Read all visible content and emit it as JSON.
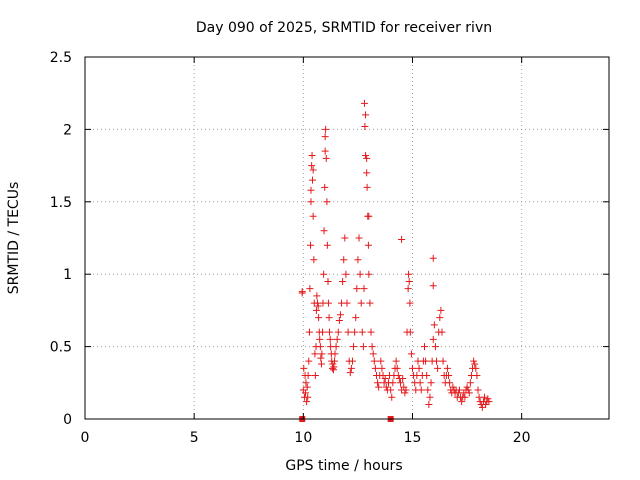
{
  "chart_data": {
    "type": "scatter",
    "title": "Day 090 of 2025, SRMTID for receiver rivn",
    "xlabel": "GPS time / hours",
    "ylabel": "SRMTID / TECUs",
    "xlim": [
      0,
      24
    ],
    "ylim": [
      0,
      2.5
    ],
    "xticks": [
      0,
      5,
      10,
      15,
      20
    ],
    "xtick_labels": [
      "0",
      "5",
      "10",
      "15",
      "20"
    ],
    "yticks": [
      0,
      0.5,
      1,
      1.5,
      2,
      2.5
    ],
    "ytick_labels": [
      "0",
      "0.5",
      "1",
      "1.5",
      "2",
      "2.5"
    ],
    "grid": true,
    "marker": "plus",
    "color": "#e41a1c",
    "series": [
      {
        "name": "SRMTID",
        "points": [
          [
            9.95,
            0.87
          ],
          [
            10.0,
            0.2
          ],
          [
            10.02,
            0.35
          ],
          [
            10.05,
            0.15
          ],
          [
            10.08,
            0.3
          ],
          [
            10.1,
            0.18
          ],
          [
            10.12,
            0.25
          ],
          [
            10.15,
            0.12
          ],
          [
            10.18,
            0.22
          ],
          [
            10.2,
            0.15
          ],
          [
            10.22,
            0.3
          ],
          [
            10.25,
            0.4
          ],
          [
            10.28,
            0.6
          ],
          [
            10.3,
            0.9
          ],
          [
            10.33,
            1.2
          ],
          [
            10.35,
            1.5
          ],
          [
            10.38,
            1.75
          ],
          [
            10.4,
            1.82
          ],
          [
            10.42,
            1.65
          ],
          [
            10.45,
            1.4
          ],
          [
            10.48,
            1.1
          ],
          [
            10.5,
            0.8
          ],
          [
            10.53,
            0.45
          ],
          [
            10.55,
            0.3
          ],
          [
            10.58,
            0.5
          ],
          [
            10.6,
            0.75
          ],
          [
            10.62,
            0.85
          ],
          [
            10.65,
            0.8
          ],
          [
            10.68,
            0.78
          ],
          [
            10.7,
            0.7
          ],
          [
            10.73,
            0.6
          ],
          [
            10.75,
            0.55
          ],
          [
            10.78,
            0.5
          ],
          [
            10.8,
            0.42
          ],
          [
            10.83,
            0.38
          ],
          [
            10.85,
            0.45
          ],
          [
            10.88,
            0.6
          ],
          [
            10.9,
            0.8
          ],
          [
            10.93,
            1.0
          ],
          [
            10.95,
            1.3
          ],
          [
            10.98,
            1.6
          ],
          [
            11.0,
            1.85
          ],
          [
            11.02,
            2.0
          ],
          [
            11.05,
            1.8
          ],
          [
            11.08,
            1.5
          ],
          [
            11.1,
            1.2
          ],
          [
            11.13,
            0.95
          ],
          [
            11.15,
            0.8
          ],
          [
            11.18,
            0.7
          ],
          [
            11.2,
            0.6
          ],
          [
            11.23,
            0.55
          ],
          [
            11.25,
            0.5
          ],
          [
            11.28,
            0.45
          ],
          [
            11.3,
            0.4
          ],
          [
            11.33,
            0.35
          ],
          [
            11.35,
            0.38
          ],
          [
            11.38,
            0.34
          ],
          [
            11.4,
            0.36
          ],
          [
            11.43,
            0.4
          ],
          [
            11.45,
            0.45
          ],
          [
            11.5,
            0.5
          ],
          [
            11.55,
            0.55
          ],
          [
            11.6,
            0.6
          ],
          [
            11.65,
            0.68
          ],
          [
            11.7,
            0.72
          ],
          [
            11.75,
            0.8
          ],
          [
            11.8,
            0.95
          ],
          [
            11.85,
            1.1
          ],
          [
            11.9,
            1.25
          ],
          [
            11.95,
            1.0
          ],
          [
            12.0,
            0.8
          ],
          [
            12.05,
            0.6
          ],
          [
            12.1,
            0.4
          ],
          [
            12.15,
            0.32
          ],
          [
            12.2,
            0.35
          ],
          [
            12.25,
            0.4
          ],
          [
            12.3,
            0.5
          ],
          [
            12.35,
            0.6
          ],
          [
            12.4,
            0.7
          ],
          [
            12.45,
            0.9
          ],
          [
            12.5,
            1.1
          ],
          [
            12.55,
            1.25
          ],
          [
            12.6,
            1.0
          ],
          [
            12.65,
            0.8
          ],
          [
            12.7,
            0.6
          ],
          [
            12.75,
            0.5
          ],
          [
            12.78,
            0.9
          ],
          [
            12.8,
            2.18
          ],
          [
            12.82,
            2.02
          ],
          [
            12.85,
            2.1
          ],
          [
            12.9,
            1.8
          ],
          [
            12.92,
            1.6
          ],
          [
            12.95,
            1.4
          ],
          [
            12.98,
            1.2
          ],
          [
            13.0,
            1.0
          ],
          [
            13.05,
            0.8
          ],
          [
            13.1,
            0.6
          ],
          [
            13.15,
            0.5
          ],
          [
            13.2,
            0.45
          ],
          [
            13.25,
            0.4
          ],
          [
            13.3,
            0.35
          ],
          [
            13.35,
            0.3
          ],
          [
            13.4,
            0.25
          ],
          [
            13.45,
            0.22
          ],
          [
            13.5,
            0.3
          ],
          [
            13.55,
            0.4
          ],
          [
            13.6,
            0.35
          ],
          [
            13.65,
            0.3
          ],
          [
            13.7,
            0.25
          ],
          [
            13.75,
            0.28
          ],
          [
            13.8,
            0.22
          ],
          [
            13.85,
            0.2
          ],
          [
            13.9,
            0.25
          ],
          [
            13.95,
            0.3
          ],
          [
            14.0,
            0.2
          ],
          [
            14.05,
            0.15
          ],
          [
            14.1,
            0.25
          ],
          [
            14.15,
            0.3
          ],
          [
            14.2,
            0.35
          ],
          [
            14.25,
            0.4
          ],
          [
            14.3,
            0.35
          ],
          [
            14.35,
            0.3
          ],
          [
            14.4,
            0.28
          ],
          [
            14.45,
            0.25
          ],
          [
            14.5,
            0.2
          ],
          [
            14.55,
            0.28
          ],
          [
            14.6,
            0.22
          ],
          [
            14.65,
            0.18
          ],
          [
            14.7,
            0.2
          ],
          [
            14.75,
            0.6
          ],
          [
            14.8,
            0.9
          ],
          [
            14.82,
            1.0
          ],
          [
            14.85,
            0.95
          ],
          [
            14.88,
            0.8
          ],
          [
            14.9,
            0.6
          ],
          [
            14.95,
            0.45
          ],
          [
            15.0,
            0.35
          ],
          [
            15.05,
            0.3
          ],
          [
            15.1,
            0.25
          ],
          [
            15.15,
            0.2
          ],
          [
            15.2,
            0.3
          ],
          [
            15.25,
            0.4
          ],
          [
            15.3,
            0.35
          ],
          [
            15.35,
            0.25
          ],
          [
            15.4,
            0.2
          ],
          [
            15.45,
            0.3
          ],
          [
            15.5,
            0.4
          ],
          [
            15.55,
            0.5
          ],
          [
            15.6,
            0.4
          ],
          [
            15.65,
            0.3
          ],
          [
            15.7,
            0.2
          ],
          [
            15.75,
            0.1
          ],
          [
            15.8,
            0.15
          ],
          [
            15.85,
            0.25
          ],
          [
            15.9,
            0.4
          ],
          [
            15.95,
            0.55
          ],
          [
            16.0,
            0.65
          ],
          [
            16.05,
            0.5
          ],
          [
            16.1,
            0.4
          ],
          [
            16.15,
            0.35
          ],
          [
            16.2,
            0.6
          ],
          [
            16.25,
            0.7
          ],
          [
            16.3,
            0.75
          ],
          [
            16.35,
            0.6
          ],
          [
            16.4,
            0.4
          ],
          [
            16.45,
            0.3
          ],
          [
            16.5,
            0.25
          ],
          [
            16.55,
            0.3
          ],
          [
            16.6,
            0.35
          ],
          [
            16.65,
            0.3
          ],
          [
            16.7,
            0.25
          ],
          [
            16.75,
            0.2
          ],
          [
            16.8,
            0.18
          ],
          [
            16.85,
            0.22
          ],
          [
            16.9,
            0.2
          ],
          [
            16.95,
            0.18
          ],
          [
            17.0,
            0.2
          ],
          [
            17.05,
            0.15
          ],
          [
            17.1,
            0.18
          ],
          [
            17.15,
            0.2
          ],
          [
            17.2,
            0.15
          ],
          [
            17.25,
            0.12
          ],
          [
            17.3,
            0.15
          ],
          [
            17.35,
            0.18
          ],
          [
            17.4,
            0.15
          ],
          [
            17.45,
            0.2
          ],
          [
            17.5,
            0.22
          ],
          [
            17.55,
            0.2
          ],
          [
            17.6,
            0.18
          ],
          [
            17.65,
            0.25
          ],
          [
            17.7,
            0.3
          ],
          [
            17.75,
            0.35
          ],
          [
            17.8,
            0.4
          ],
          [
            17.85,
            0.38
          ],
          [
            17.9,
            0.35
          ],
          [
            17.95,
            0.3
          ],
          [
            18.0,
            0.2
          ],
          [
            18.05,
            0.15
          ],
          [
            18.1,
            0.12
          ],
          [
            18.15,
            0.1
          ],
          [
            18.2,
            0.08
          ],
          [
            18.25,
            0.12
          ],
          [
            18.3,
            0.15
          ],
          [
            18.35,
            0.1
          ],
          [
            18.4,
            0.12
          ],
          [
            18.45,
            0.14
          ],
          [
            18.5,
            0.12
          ],
          [
            10.35,
            1.58
          ],
          [
            10.45,
            1.72
          ],
          [
            11.0,
            1.95
          ],
          [
            12.85,
            1.82
          ],
          [
            12.9,
            1.7
          ],
          [
            13.0,
            1.4
          ],
          [
            14.5,
            1.24
          ],
          [
            15.95,
            1.11
          ],
          [
            15.95,
            0.92
          ],
          [
            9.95,
            0.88
          ]
        ]
      },
      {
        "name": "zero values",
        "marker": "square",
        "points": [
          [
            9.95,
            0.0
          ],
          [
            14.0,
            0.0
          ]
        ]
      }
    ]
  }
}
